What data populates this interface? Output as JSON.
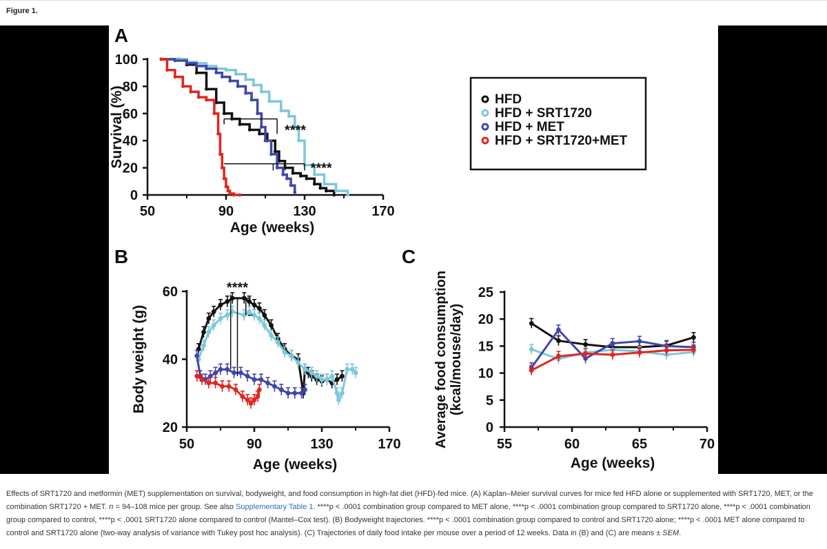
{
  "figure_label": "Figure 1.",
  "caption": {
    "seg1": "Effects of SRT1720 and metformin (MET) supplementation on survival, bodyweight, and food consumption in high-fat diet (HFD)-fed mice. (A) Kaplan–Meier survival curves for mice fed HFD alone or supplemented with SRT1720, MET, or the combination SRT1720 + MET. ",
    "n": "n",
    "seg2": " = 94–108 mice per group. See also ",
    "link": "Supplementary Table 1",
    "seg3": ". ****p < .0001 combination group compared to MET alone, ****p < .0001 combination group compared to SRT1720 alone, ****p < .0001 combination group compared to control, ****p < .0001 SRT1720 alone compared to control (Mantel–Cox test). (B) Bodyweight trajectories. ****p < .0001 combination group compared to control and SRT1720 alone; ****p < .0001 MET alone compared to control and SRT1720 alone (two-way analysis of variance with Tukey post hoc analysis). (C) Trajectories of daily food intake per mouse over a period of 12 weeks. Data in (B) and (C) are means ± ",
    "sem": "SEM",
    "seg4": "."
  },
  "colors": {
    "HFD": "#111111",
    "HFD + SRT1720": "#7cc8dc",
    "HFD + MET": "#3f47a8",
    "HFD + SRT1720+MET": "#e0261e"
  },
  "chart_data": [
    {
      "panel": "A",
      "type": "line",
      "xlabel": "Age (weeks)",
      "ylabel": "Survival (%)",
      "xlim": [
        50,
        170
      ],
      "ylim": [
        0,
        100
      ],
      "xticks": [
        "50",
        "90",
        "130",
        "170"
      ],
      "yticks": [
        "0",
        "20",
        "40",
        "60",
        "80",
        "100"
      ],
      "legend": [
        "HFD",
        "HFD + SRT1720",
        "HFD + MET",
        "HFD + SRT1720+MET"
      ],
      "legend_position": "top-right",
      "annotations": [
        "****",
        "****"
      ],
      "series": [
        {
          "name": "HFD",
          "x": [
            57,
            66,
            70,
            75,
            80,
            85,
            89,
            93,
            97,
            102,
            107,
            111,
            115,
            117,
            120,
            124,
            128,
            131,
            135,
            138,
            141,
            145
          ],
          "y": [
            100,
            100,
            96,
            90,
            78,
            68,
            60,
            56,
            52,
            48,
            45,
            40,
            32,
            25,
            20,
            16,
            14,
            12,
            8,
            5,
            3,
            0
          ]
        },
        {
          "name": "HFD + SRT1720",
          "x": [
            57,
            62,
            70,
            75,
            80,
            85,
            90,
            95,
            100,
            104,
            108,
            112,
            118,
            122,
            125,
            127,
            130,
            135,
            140,
            146,
            152
          ],
          "y": [
            100,
            100,
            98,
            97,
            95,
            93,
            92,
            89,
            85,
            81,
            76,
            69,
            62,
            58,
            50,
            40,
            22,
            15,
            8,
            3,
            0
          ]
        },
        {
          "name": "HFD + MET",
          "x": [
            57,
            64,
            70,
            75,
            80,
            85,
            88,
            92,
            96,
            100,
            103,
            106,
            108,
            110,
            113,
            116,
            119,
            121,
            123,
            125
          ],
          "y": [
            100,
            99,
            97,
            95,
            93,
            90,
            87,
            84,
            80,
            75,
            70,
            60,
            50,
            40,
            30,
            20,
            15,
            12,
            7,
            2
          ]
        },
        {
          "name": "HFD + SRT1720+MET",
          "x": [
            57,
            60,
            64,
            68,
            72,
            76,
            80,
            84,
            86,
            87,
            88,
            89,
            90,
            91,
            92,
            94,
            97
          ],
          "y": [
            100,
            92,
            87,
            80,
            76,
            72,
            70,
            60,
            45,
            30,
            20,
            12,
            6,
            3,
            1,
            0,
            0
          ]
        }
      ]
    },
    {
      "panel": "B",
      "type": "line",
      "xlabel": "Age (weeks)",
      "ylabel": "Body weight (g)",
      "xlim": [
        50,
        170
      ],
      "ylim": [
        20,
        60
      ],
      "xticks": [
        "50",
        "90",
        "130",
        "170"
      ],
      "yticks": [
        "20",
        "40",
        "60"
      ],
      "annotations": [
        "****"
      ],
      "series": [
        {
          "name": "HFD",
          "x": [
            57,
            60,
            63,
            66,
            70,
            74,
            77,
            84,
            87,
            90,
            93,
            96,
            100,
            104,
            108,
            112,
            116,
            119,
            120,
            122,
            124,
            127,
            130,
            133,
            136,
            139,
            142
          ],
          "y": [
            43,
            48,
            52,
            54,
            56,
            57,
            58,
            58,
            57,
            56,
            55,
            53,
            50,
            46,
            43,
            41,
            40,
            30,
            37,
            36,
            35,
            34,
            33.5,
            34,
            33,
            34,
            35
          ]
        },
        {
          "name": "HFD + SRT1720",
          "x": [
            57,
            60,
            63,
            66,
            70,
            74,
            77,
            84,
            87,
            90,
            93,
            96,
            100,
            104,
            108,
            112,
            116,
            120,
            124,
            127,
            130,
            133,
            136,
            139,
            140,
            142,
            145,
            148,
            150
          ],
          "y": [
            40,
            44,
            48,
            50,
            52,
            53,
            54,
            53,
            54,
            53,
            52,
            50,
            47,
            45,
            42,
            41,
            39,
            37,
            36,
            35,
            34,
            34,
            35,
            30,
            28,
            30,
            37,
            37,
            36
          ]
        },
        {
          "name": "HFD + MET",
          "x": [
            56,
            58,
            61,
            64,
            67,
            70,
            74,
            78,
            82,
            86,
            90,
            94,
            98,
            102,
            106,
            110,
            114,
            118,
            120
          ],
          "y": [
            41,
            35,
            34,
            35,
            36,
            37,
            37,
            36,
            36,
            35,
            34,
            34,
            33,
            32,
            31,
            30,
            30,
            30,
            31
          ]
        },
        {
          "name": "HFD + SRT1720+MET",
          "x": [
            56,
            59,
            63,
            67,
            71,
            75,
            79,
            83,
            86,
            88,
            90,
            92,
            93
          ],
          "y": [
            35,
            34,
            33,
            33,
            32,
            32,
            31,
            29,
            28,
            27,
            28,
            29,
            31
          ]
        }
      ]
    },
    {
      "panel": "C",
      "type": "line",
      "xlabel": "Age (weeks)",
      "ylabel": "Average food consumption (kcal/mouse/day)",
      "xlim": [
        55,
        70
      ],
      "ylim": [
        0,
        25
      ],
      "xticks": [
        "55",
        "60",
        "65",
        "70"
      ],
      "yticks": [
        "0",
        "5",
        "10",
        "15",
        "20",
        "25"
      ],
      "series": [
        {
          "name": "HFD",
          "x": [
            57,
            59,
            61,
            63,
            65,
            67,
            69
          ],
          "y": [
            19.2,
            16.0,
            15.3,
            14.8,
            14.8,
            15.1,
            16.6
          ]
        },
        {
          "name": "HFD + SRT1720",
          "x": [
            57,
            59,
            61,
            63,
            65,
            67,
            69
          ],
          "y": [
            14.4,
            12.6,
            13.8,
            14.3,
            14.0,
            13.4,
            13.9
          ]
        },
        {
          "name": "HFD + MET",
          "x": [
            57,
            59,
            61,
            63,
            65,
            67,
            69
          ],
          "y": [
            11.0,
            18.0,
            12.7,
            15.5,
            15.9,
            15.0,
            14.8
          ]
        },
        {
          "name": "HFD + SRT1720+MET",
          "x": [
            57,
            59,
            61,
            63,
            65,
            67,
            69
          ],
          "y": [
            10.5,
            13.1,
            13.6,
            13.4,
            13.8,
            14.2,
            14.3
          ]
        }
      ]
    }
  ]
}
